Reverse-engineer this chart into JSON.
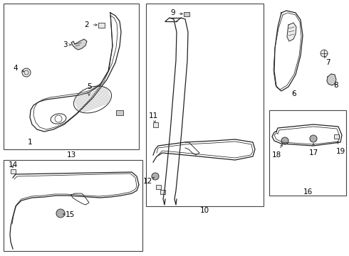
{
  "bg_color": "#ffffff",
  "line_color": "#222222",
  "figsize": [
    4.9,
    3.6
  ],
  "dpi": 100,
  "lw": 0.9
}
